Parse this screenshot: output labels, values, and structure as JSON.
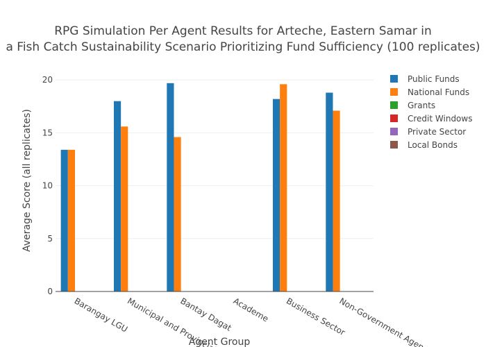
{
  "chart_data": {
    "type": "bar",
    "title_lines": [
      "RPG Simulation Per Agent Results for Arteche, Eastern Samar in",
      "a Fish Catch Sustainability Scenario Prioritizing Fund Sufficiency (100 replicates)"
    ],
    "xlabel": "Agent Group",
    "ylabel": "Average Score (all replicates)",
    "ylim": [
      0,
      21
    ],
    "yticks": [
      0,
      5,
      10,
      15,
      20
    ],
    "grid": true,
    "legend_position": "top-right",
    "categories": [
      "Barangay LGU",
      "Municipal and Provincial LGU",
      "Bantay Dagat",
      "Academe",
      "Business Sector",
      "Non-Government Agencies"
    ],
    "series": [
      {
        "name": "Public Funds",
        "color": "#1f77b4",
        "values": [
          13.4,
          18.0,
          19.7,
          0,
          18.2,
          18.8
        ]
      },
      {
        "name": "National Funds",
        "color": "#ff7f0e",
        "values": [
          13.4,
          15.6,
          14.6,
          0,
          19.6,
          17.1
        ]
      },
      {
        "name": "Grants",
        "color": "#2ca02c",
        "values": [
          0,
          0,
          0,
          0,
          0,
          0
        ]
      },
      {
        "name": "Credit Windows",
        "color": "#d62728",
        "values": [
          0,
          0,
          0,
          0,
          0,
          0
        ]
      },
      {
        "name": "Private Sector",
        "color": "#9467bd",
        "values": [
          0,
          0,
          0,
          0,
          0,
          0
        ]
      },
      {
        "name": "Local Bonds",
        "color": "#8c564b",
        "values": [
          0,
          0,
          0,
          0,
          0,
          0
        ]
      }
    ]
  }
}
